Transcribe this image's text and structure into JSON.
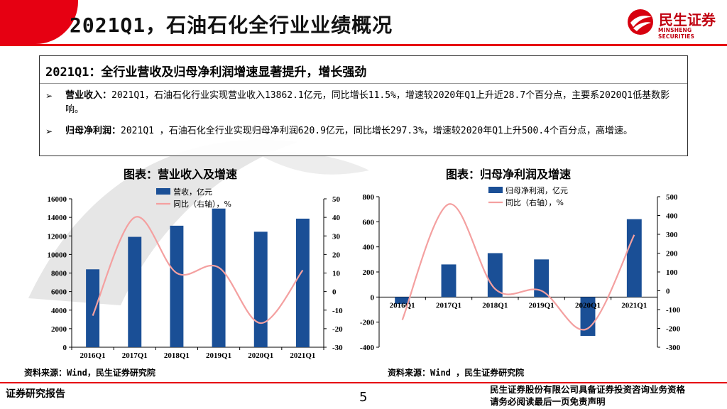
{
  "header": {
    "title": "2021Q1，石油石化全行业业绩概况",
    "logo_cn": "民生证券",
    "logo_en": "MINSHENG SECURITIES"
  },
  "summary": {
    "heading": "2021Q1：全行业营收及归母净利润增速显著提升，增长强劲",
    "bullets": [
      {
        "mark": "➢",
        "label": "营业收入：",
        "text": "2021Q1，石油石化行业实现营业收入13862.1亿元，同比增长11.5%，增速较2020年Q1上升近28.7个百分点，主要系2020Q1低基数影响。"
      },
      {
        "mark": "➢",
        "label": "归母净利润：",
        "text": "2021Q1 ，石油石化全行业实现归母净利润620.9亿元，同比增长297.3%，增速较2020年Q1上升500.4个百分点，高增速。"
      }
    ]
  },
  "colors": {
    "bar": "#1a4f96",
    "line": "#f4a0a0",
    "brand": "#e60012"
  },
  "chart_data": [
    {
      "type": "bar",
      "title": "图表：营业收入及增速",
      "categories": [
        "2016Q1",
        "2017Q1",
        "2018Q1",
        "2019Q1",
        "2020Q1",
        "2021Q1"
      ],
      "series": [
        {
          "name": "营收，亿元",
          "kind": "bar",
          "axis": "left",
          "values": [
            8400,
            11900,
            13100,
            14950,
            12450,
            13862
          ]
        },
        {
          "name": "同比（右轴），%",
          "kind": "line",
          "axis": "right",
          "values": [
            -13,
            40,
            10,
            13,
            -17,
            11.5
          ]
        }
      ],
      "ylim_left": [
        0,
        16000
      ],
      "yticks_left": [
        0,
        2000,
        4000,
        6000,
        8000,
        10000,
        12000,
        14000,
        16000
      ],
      "ylim_right": [
        -30,
        50
      ],
      "yticks_right": [
        -30,
        -20,
        -10,
        0,
        10,
        20,
        30,
        40,
        50
      ],
      "source": "资料来源：Wind，民生证券研究院"
    },
    {
      "type": "bar",
      "title": "图表：归母净利润及增速",
      "categories": [
        "2016Q1",
        "2017Q1",
        "2018Q1",
        "2019Q1",
        "2020Q1",
        "2021Q1"
      ],
      "series": [
        {
          "name": "归母净利润，亿元",
          "kind": "bar",
          "axis": "left",
          "values": [
            -55,
            260,
            350,
            300,
            -310,
            620.9
          ]
        },
        {
          "name": "同比（右轴），%",
          "kind": "line",
          "axis": "right",
          "values": [
            -155,
            460,
            10,
            0,
            -200,
            297.3
          ]
        }
      ],
      "ylim_left": [
        -400,
        800
      ],
      "yticks_left": [
        -400,
        -200,
        0,
        200,
        400,
        600,
        800
      ],
      "ylim_right": [
        -300,
        500
      ],
      "yticks_right": [
        -300,
        -200,
        -100,
        0,
        100,
        200,
        300,
        400,
        500
      ],
      "source": "资料来源：Wind ，民生证券研究院"
    }
  ],
  "footer": {
    "left": "证券研究报告",
    "page": "5",
    "right_line1": "民生证券股份有限公司具备证券投资咨询业务资格",
    "right_line2": "请务必阅读最后一页免责声明"
  }
}
